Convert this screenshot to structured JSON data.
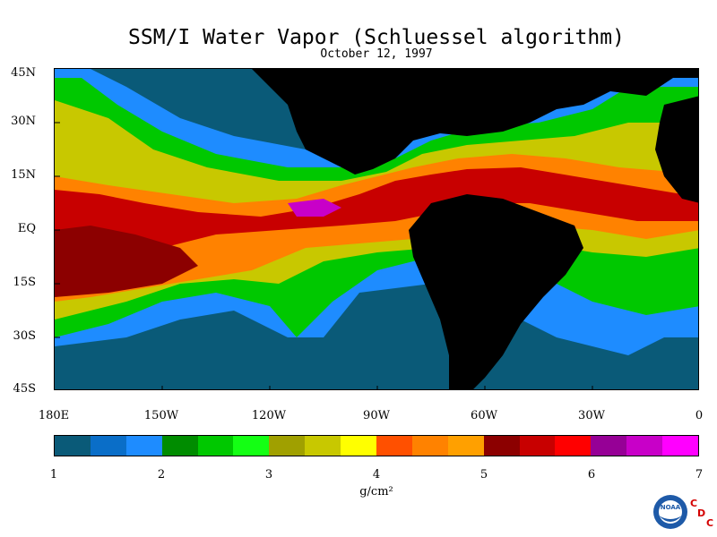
{
  "title": "SSM/I Water Vapor (Schluessel algorithm)",
  "subtitle": "October 12, 1997",
  "lat_labels": [
    "45N",
    "30N",
    "15N",
    "EQ",
    "15S",
    "30S",
    "45S"
  ],
  "lon_labels": [
    "180E",
    "150W",
    "120W",
    "90W",
    "60W",
    "30W",
    "0"
  ],
  "colorbar": {
    "tick_labels": [
      "1",
      "2",
      "3",
      "4",
      "5",
      "6",
      "7"
    ],
    "units_label": "g/cm²",
    "colors": [
      "#0a5a78",
      "#0a6ec8",
      "#1e8cff",
      "#008c00",
      "#00c800",
      "#14ff14",
      "#a0a000",
      "#c8c800",
      "#ffff00",
      "#ff5000",
      "#ff8200",
      "#ffa000",
      "#8c0000",
      "#c80000",
      "#ff0000",
      "#960096",
      "#c800c8",
      "#ff00ff"
    ]
  },
  "legend_colors": {
    "land": "#000000",
    "low_vapor": "#0a5a78",
    "high_vapor": "#c80000"
  },
  "logo": {
    "text": "NOAA",
    "cdc_letters": [
      "C",
      "D",
      "C"
    ]
  }
}
